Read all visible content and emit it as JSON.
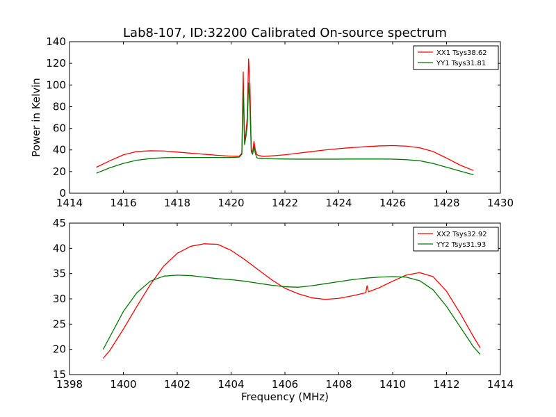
{
  "title": "Lab8-107, ID:32200 Calibrated On-source spectrum",
  "chart_data": [
    {
      "type": "line",
      "xlabel": "",
      "ylabel": "Power in Kelvin",
      "xlim": [
        1414,
        1430
      ],
      "ylim": [
        0,
        140
      ],
      "xticks": [
        1414,
        1416,
        1418,
        1420,
        1422,
        1424,
        1426,
        1428,
        1430
      ],
      "yticks": [
        0,
        20,
        40,
        60,
        80,
        100,
        120,
        140
      ],
      "grid": false,
      "legend": "top-right",
      "series": [
        {
          "name": "XX1 Tsys38.62",
          "color": "#ff0000",
          "x": [
            1415.0,
            1415.5,
            1416.0,
            1416.5,
            1417.0,
            1417.5,
            1418.0,
            1418.5,
            1419.0,
            1419.5,
            1420.0,
            1420.3,
            1420.4,
            1420.45,
            1420.5,
            1420.55,
            1420.6,
            1420.65,
            1420.7,
            1420.75,
            1420.8,
            1420.85,
            1420.9,
            1420.95,
            1421.0,
            1421.2,
            1421.5,
            1422.0,
            1422.5,
            1423.0,
            1423.5,
            1424.0,
            1424.5,
            1425.0,
            1425.5,
            1426.0,
            1426.5,
            1427.0,
            1427.5,
            1428.0,
            1428.5,
            1429.0
          ],
          "y": [
            24,
            30,
            35.5,
            38.5,
            39.2,
            39,
            38,
            37,
            36,
            35,
            34.2,
            34.2,
            37,
            112,
            50,
            55,
            70,
            124,
            100,
            40,
            38,
            48,
            40,
            36,
            35,
            34,
            34.5,
            35.5,
            37,
            38.5,
            40,
            41.2,
            42.2,
            43,
            43.7,
            44,
            43.5,
            42,
            38.5,
            32.5,
            26,
            21
          ]
        },
        {
          "name": "YY1 Tsys31.81",
          "color": "#007700",
          "x": [
            1415.0,
            1415.5,
            1416.0,
            1416.5,
            1417.0,
            1417.5,
            1418.0,
            1418.5,
            1419.0,
            1419.5,
            1420.0,
            1420.3,
            1420.4,
            1420.45,
            1420.5,
            1420.55,
            1420.6,
            1420.65,
            1420.7,
            1420.75,
            1420.8,
            1420.85,
            1420.9,
            1420.95,
            1421.0,
            1421.2,
            1421.5,
            1422.0,
            1422.5,
            1423.0,
            1423.5,
            1424.0,
            1424.5,
            1425.0,
            1425.5,
            1426.0,
            1426.5,
            1427.0,
            1427.5,
            1428.0,
            1428.5,
            1429.0
          ],
          "y": [
            18.5,
            23.5,
            27.5,
            30.5,
            32,
            32.8,
            33,
            33,
            33,
            33,
            33,
            33.3,
            36,
            95,
            45,
            52,
            62,
            102,
            80,
            38,
            36,
            43,
            37,
            33,
            32.3,
            32,
            31.8,
            31.6,
            31.5,
            31.5,
            31.5,
            31.5,
            31.6,
            31.6,
            31.6,
            31.5,
            31,
            30,
            27.5,
            24,
            20.5,
            17
          ]
        }
      ]
    },
    {
      "type": "line",
      "xlabel": "Frequency (MHz)",
      "ylabel": "",
      "xlim": [
        1398,
        1414
      ],
      "ylim": [
        15,
        45
      ],
      "xticks": [
        1398,
        1400,
        1402,
        1404,
        1406,
        1408,
        1410,
        1412,
        1414
      ],
      "yticks": [
        15,
        20,
        25,
        30,
        35,
        40,
        45
      ],
      "grid": false,
      "legend": "top-right",
      "series": [
        {
          "name": "XX2 Tsys32.92",
          "color": "#ff0000",
          "x": [
            1399.25,
            1399.5,
            1400.0,
            1400.5,
            1401.0,
            1401.5,
            1402.0,
            1402.5,
            1403.0,
            1403.5,
            1404.0,
            1404.5,
            1405.0,
            1405.5,
            1406.0,
            1406.5,
            1407.0,
            1407.5,
            1408.0,
            1408.5,
            1409.0,
            1409.05,
            1409.1,
            1409.5,
            1410.0,
            1410.5,
            1411.0,
            1411.5,
            1412.0,
            1412.5,
            1413.0,
            1413.25
          ],
          "y": [
            18.2,
            19.8,
            24,
            28.5,
            32.8,
            36.5,
            39,
            40.4,
            40.9,
            40.8,
            39.6,
            37.8,
            35.8,
            33.8,
            32.1,
            31,
            30.2,
            29.9,
            30.1,
            30.6,
            31.2,
            32.6,
            31.4,
            32.2,
            33.5,
            34.7,
            35.2,
            34.4,
            31.5,
            27.2,
            22.5,
            20.3
          ]
        },
        {
          "name": "YY2 Tsys31.93",
          "color": "#007700",
          "x": [
            1399.25,
            1399.5,
            1400.0,
            1400.5,
            1401.0,
            1401.5,
            1402.0,
            1402.5,
            1403.0,
            1403.5,
            1404.0,
            1404.5,
            1405.0,
            1405.5,
            1406.0,
            1406.5,
            1407.0,
            1407.5,
            1408.0,
            1408.5,
            1409.0,
            1409.5,
            1410.0,
            1410.5,
            1411.0,
            1411.5,
            1412.0,
            1412.5,
            1413.0,
            1413.25
          ],
          "y": [
            20,
            22.5,
            27.5,
            31.2,
            33.5,
            34.5,
            34.7,
            34.6,
            34.3,
            34,
            33.8,
            33.5,
            33.1,
            32.7,
            32.4,
            32.3,
            32.6,
            33,
            33.4,
            33.8,
            34.1,
            34.3,
            34.4,
            34.3,
            33.6,
            31.8,
            28.5,
            24.5,
            20.5,
            19
          ]
        }
      ]
    }
  ]
}
